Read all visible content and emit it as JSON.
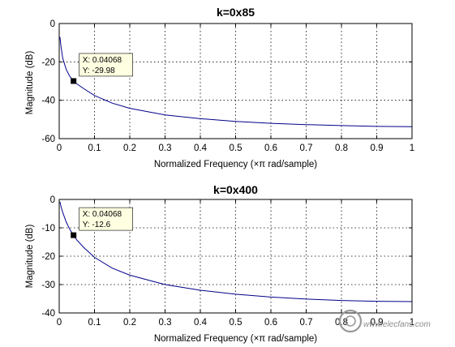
{
  "chart_data": [
    {
      "type": "line",
      "title": "k=0x85",
      "xlabel": "Normalized Frequency  (×π rad/sample)",
      "ylabel": "Magnitude (dB)",
      "xlim": [
        0,
        1
      ],
      "ylim": [
        -60,
        0
      ],
      "xticks": [
        0,
        0.1,
        0.2,
        0.3,
        0.4,
        0.5,
        0.6,
        0.7,
        0.8,
        0.9,
        1
      ],
      "xtick_labels": [
        "0",
        "0.1",
        "0.2",
        "0.3",
        "0.4",
        "0.5",
        "0.6",
        "0.7",
        "0.8",
        "0.9",
        "1"
      ],
      "yticks": [
        0,
        -20,
        -40,
        -60
      ],
      "ytick_labels": [
        "0",
        "-20",
        "-40",
        "-60"
      ],
      "grid": true,
      "line_color": "#00008b",
      "series": [
        {
          "x": [
            0.002,
            0.005,
            0.01,
            0.02,
            0.03,
            0.04068,
            0.05,
            0.07,
            0.1,
            0.15,
            0.2,
            0.3,
            0.4,
            0.5,
            0.6,
            0.7,
            0.8,
            0.9,
            1.0
          ],
          "values": [
            -7,
            -12,
            -18,
            -24,
            -27.5,
            -29.98,
            -31.5,
            -34,
            -37.5,
            -41.5,
            -44.2,
            -47.6,
            -49.6,
            -51,
            -52,
            -52.7,
            -53.2,
            -53.6,
            -53.8
          ]
        }
      ],
      "datatip": {
        "x": 0.04068,
        "y": -29.98,
        "x_text": "X: 0.04068",
        "y_text": "Y: -29.98"
      }
    },
    {
      "type": "line",
      "title": "k=0x400",
      "xlabel": "Normalized Frequency  (×π rad/sample)",
      "ylabel": "Magnitude (dB)",
      "xlim": [
        0,
        1
      ],
      "ylim": [
        -40,
        0
      ],
      "xticks": [
        0,
        0.1,
        0.2,
        0.3,
        0.4,
        0.5,
        0.6,
        0.7,
        0.8,
        0.9,
        1
      ],
      "xtick_labels": [
        "0",
        "0.1",
        "0.2",
        "0.3",
        "0.4",
        "0.5",
        "0.6",
        "0.7",
        "0.8",
        "0.9",
        "1"
      ],
      "yticks": [
        0,
        -10,
        -20,
        -30,
        -40
      ],
      "ytick_labels": [
        "0",
        "-10",
        "-20",
        "-30",
        "-40"
      ],
      "grid": true,
      "line_color": "#00008b",
      "series": [
        {
          "x": [
            0.002,
            0.005,
            0.01,
            0.02,
            0.03,
            0.04068,
            0.05,
            0.07,
            0.1,
            0.15,
            0.2,
            0.3,
            0.4,
            0.5,
            0.6,
            0.7,
            0.8,
            0.9,
            1.0
          ],
          "values": [
            -0.8,
            -2.5,
            -4.5,
            -8.0,
            -10.5,
            -12.6,
            -14.3,
            -17.0,
            -20.4,
            -24.2,
            -26.7,
            -30.0,
            -32.0,
            -33.4,
            -34.4,
            -35.1,
            -35.6,
            -35.9,
            -36.0
          ]
        }
      ],
      "datatip": {
        "x": 0.04068,
        "y": -12.6,
        "x_text": "X: 0.04068",
        "y_text": "Y: -12.6"
      }
    }
  ],
  "watermark": {
    "text": "www.elecfans.com"
  }
}
